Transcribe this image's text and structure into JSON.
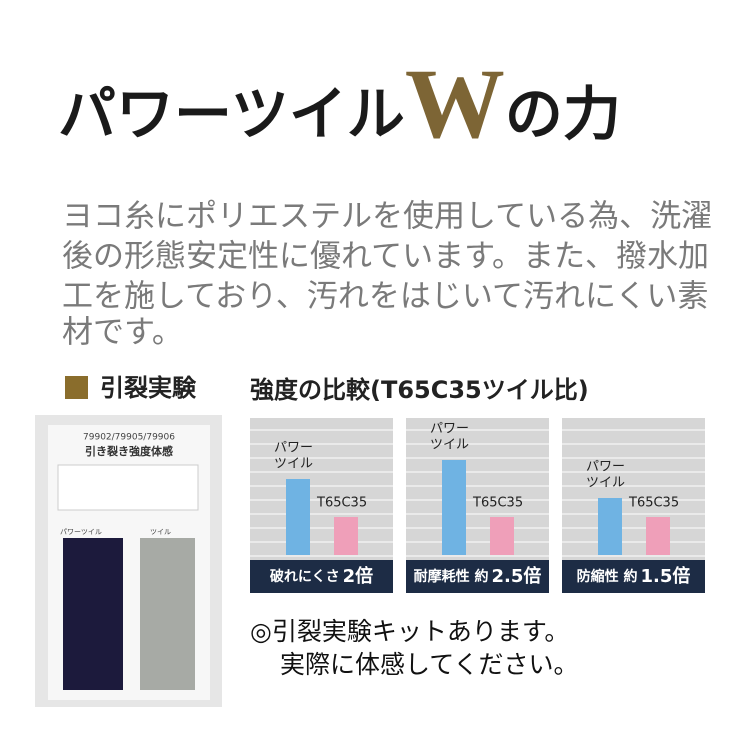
{
  "header": {
    "title_main": "パワーツイル",
    "title_w": "W",
    "title_end": "の力"
  },
  "description": [
    "ヨコ糸にポリエステルを使用している為、洗濯",
    "後の形態安定性に優れています。また、撥水加",
    "工を施しており、汚れをはじいて汚れにくい素",
    "材です。"
  ],
  "section": {
    "label": "引裂実験"
  },
  "photo": {
    "codes": "79902/79905/79906",
    "heading": "引き裂き強度体感",
    "left_label": "パワーツイル",
    "right_label": "ツイル"
  },
  "comparison": {
    "title": "強度の比較(T65C35ツイル比)",
    "series": [
      {
        "name_lines": [
          "パワー",
          "ツイル"
        ],
        "color": "#6fb3e3"
      },
      {
        "name": "T65C35",
        "color": "#ef9fb9"
      }
    ],
    "panels": [
      {
        "caption": "破れにくさ",
        "caption_value": "2倍",
        "values": [
          2,
          1
        ]
      },
      {
        "caption": "耐摩耗性 約",
        "caption_value": "2.5倍",
        "values": [
          2.5,
          1
        ]
      },
      {
        "caption": "防縮性 約",
        "caption_value": "1.5倍",
        "values": [
          1.5,
          1
        ]
      }
    ]
  },
  "note": [
    "◎引裂実験キットあります。",
    "実際に体感してください。"
  ]
}
